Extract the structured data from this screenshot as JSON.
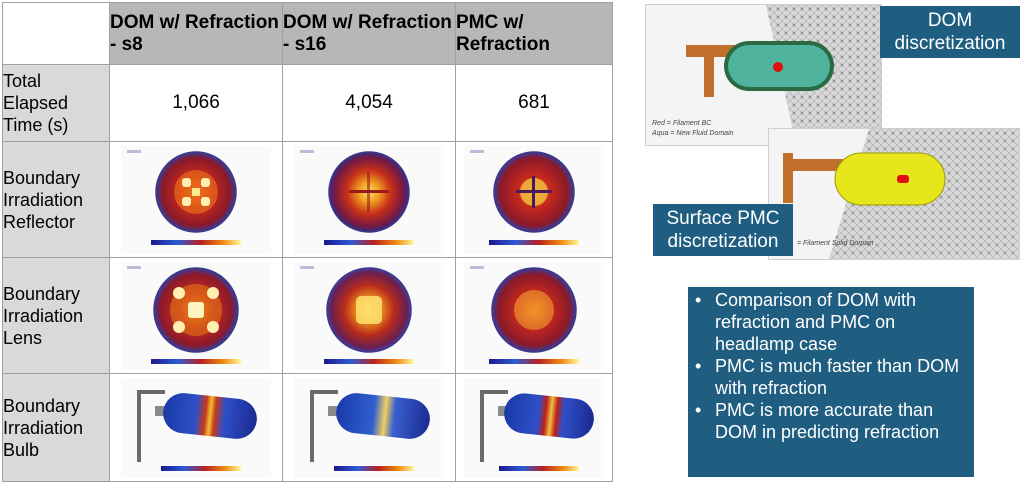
{
  "table": {
    "headers": [
      "DOM w/ Refraction - s8",
      "DOM w/ Refraction - s16",
      "PMC w/ Refraction"
    ],
    "rows": [
      {
        "label": "Total Elapsed Time (s)",
        "values": [
          "1,066",
          "4,054",
          "681"
        ]
      },
      {
        "label": "Boundary Irradiation Reflector",
        "images": [
          "reflector-dom-s8",
          "reflector-dom-s16",
          "reflector-pmc"
        ]
      },
      {
        "label": "Boundary Irradiation Lens",
        "images": [
          "lens-dom-s8",
          "lens-dom-s16",
          "lens-pmc"
        ]
      },
      {
        "label": "Boundary Irradiation Bulb",
        "images": [
          "bulb-dom-s8",
          "bulb-dom-s16",
          "bulb-pmc"
        ]
      }
    ]
  },
  "dom_panel": {
    "label_line1": "DOM",
    "label_line2": "discretization",
    "caption_line1": "Red = Filament BC",
    "caption_line2": "Aqua = New Fluid Domain",
    "body_color": "#4fb39e",
    "marker_color": "#e01010"
  },
  "pmc_panel": {
    "label_line1": "Surface PMC",
    "label_line2": "discretization",
    "caption": "= Filament Solid Domain",
    "body_color": "#e6e61a",
    "marker_color": "#e01010"
  },
  "bullets": [
    "Comparison of DOM with refraction and PMC on headlamp case",
    "PMC is much faster than DOM with refraction",
    "PMC is more accurate than DOM in predicting refraction"
  ],
  "colors": {
    "accent": "#1f5e80",
    "header_bg": "#b7b7b7",
    "row_label_bg": "#d9d9d9"
  }
}
